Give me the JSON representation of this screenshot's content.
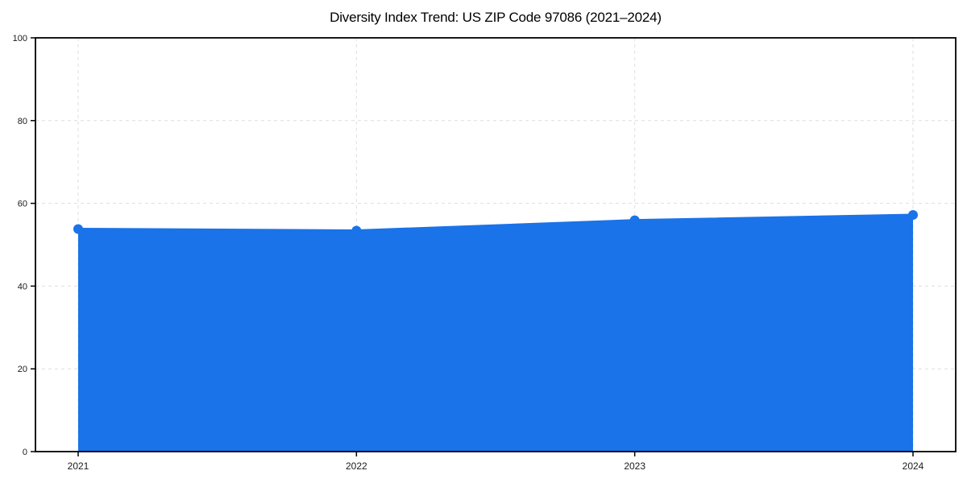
{
  "figure": {
    "title": "Diversity Index Trend: US ZIP Code 97086 (2021–2024)"
  },
  "chart_data": {
    "type": "line",
    "title": "Diversity Index Trend: US ZIP Code 97086 (2021–2024)",
    "categories": [
      "2021",
      "2022",
      "2023",
      "2024"
    ],
    "series": [
      {
        "name": "Diversity Index",
        "values": [
          53.8,
          53.4,
          55.9,
          57.2
        ]
      }
    ],
    "xlabel": "",
    "ylabel": "",
    "ylim": [
      0,
      100
    ],
    "yticks": [
      0,
      20,
      40,
      60,
      80,
      100
    ],
    "grid": "dashed-both-axes",
    "legend": "none",
    "style": {
      "area_fill": true,
      "markers": "circle",
      "marker_radius": 6,
      "line_width": 3,
      "colors": {
        "line": "#1a73e8",
        "marker": "#1a73e8",
        "fill": "#1a73e8",
        "fill_opacity": 0.1,
        "grid": "#dedede",
        "spine": "#000000",
        "tick_label": "#1a1a1a",
        "title": "#000000"
      }
    }
  }
}
